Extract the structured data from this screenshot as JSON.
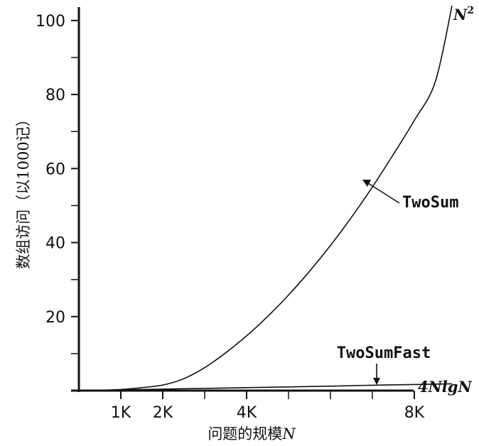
{
  "chart_data": {
    "type": "line",
    "xlabel": "问题的规模",
    "xlabel_var": "N",
    "ylabel": "数组访问（以1000记）",
    "xlim": [
      0,
      8900
    ],
    "ylim": [
      0,
      104
    ],
    "x_ticks": [
      {
        "value": 1000,
        "label": "1K"
      },
      {
        "value": 2000,
        "label": "2K"
      },
      {
        "value": 4000,
        "label": "4K"
      },
      {
        "value": 8000,
        "label": "8K"
      }
    ],
    "x_minor_ticks": [
      3000,
      5000,
      6000,
      7000
    ],
    "y_ticks": [
      {
        "value": 20,
        "label": "20"
      },
      {
        "value": 40,
        "label": "40"
      },
      {
        "value": 60,
        "label": "60"
      },
      {
        "value": 80,
        "label": "80"
      },
      {
        "value": 100,
        "label": "100"
      }
    ],
    "y_minor_ticks": [
      10,
      30,
      50,
      70,
      90
    ],
    "series": [
      {
        "name": "TwoSum",
        "curve_label": "N",
        "curve_label_sup": "2",
        "x": [
          0,
          500,
          1000,
          1500,
          2000,
          2500,
          3000,
          3500,
          4000,
          4500,
          5000,
          5500,
          6000,
          6500,
          7000,
          7500,
          8000,
          8500,
          8900
        ],
        "values": [
          0,
          0.1,
          0.3,
          0.8,
          1.5,
          3.2,
          6.2,
          10.2,
          14.8,
          20.0,
          25.8,
          32.2,
          39.2,
          46.8,
          55.0,
          63.8,
          73.0,
          83.4,
          104.0
        ]
      },
      {
        "name": "TwoSumFast",
        "curve_label": "4NlgN",
        "x": [
          0,
          1000,
          2000,
          3000,
          4000,
          5000,
          6000,
          7000,
          8000,
          8900
        ],
        "values": [
          0,
          0.2,
          0.4,
          0.6,
          0.8,
          1.0,
          1.2,
          1.45,
          1.65,
          1.85
        ]
      }
    ],
    "annotations": [
      {
        "text": "TwoSum",
        "points_to_series": "TwoSum"
      },
      {
        "text": "TwoSumFast",
        "points_to_series": "TwoSumFast"
      }
    ]
  }
}
